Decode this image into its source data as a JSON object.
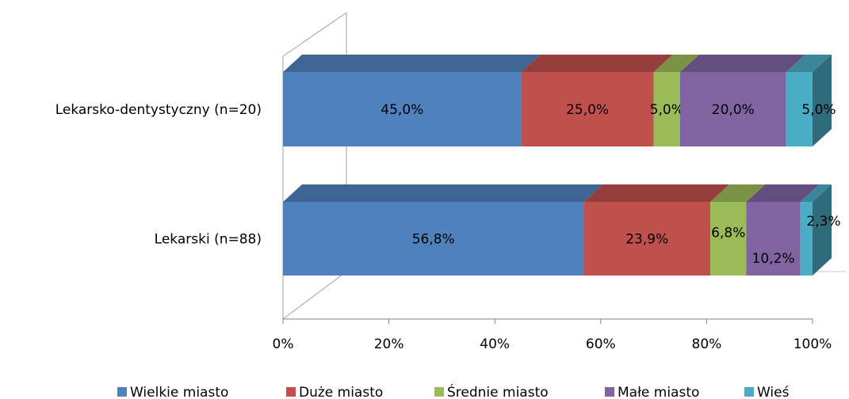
{
  "chart_data": {
    "type": "bar",
    "orientation": "horizontal",
    "stacked": true,
    "percent_stacked": true,
    "three_d": true,
    "categories": [
      "Lekarsko-dentystyczny (n=20)",
      "Lekarski (n=88)"
    ],
    "series": [
      {
        "name": "Wielkie miasto",
        "color": "#4F81BD",
        "values": [
          45.0,
          56.8
        ],
        "labels": [
          "45,0%",
          "56,8%"
        ]
      },
      {
        "name": "Duże miasto",
        "color": "#C0504D",
        "values": [
          25.0,
          23.9
        ],
        "labels": [
          "25,0%",
          "23,9%"
        ]
      },
      {
        "name": "Średnie miasto",
        "color": "#9BBB59",
        "values": [
          5.0,
          6.8
        ],
        "labels": [
          "5,0%",
          "6,8%"
        ]
      },
      {
        "name": "Małe miasto",
        "color": "#8064A2",
        "values": [
          20.0,
          10.2
        ],
        "labels": [
          "20,0%",
          "10,2%"
        ]
      },
      {
        "name": "Wieś",
        "color": "#4BACC6",
        "values": [
          5.0,
          2.3
        ],
        "labels": [
          "5,0%",
          "2,3%"
        ]
      }
    ],
    "xaxis": {
      "ticks": [
        "0%",
        "20%",
        "40%",
        "60%",
        "80%",
        "100%"
      ],
      "range": [
        0,
        100
      ]
    },
    "legend": {
      "position": "bottom"
    },
    "grid": false
  }
}
